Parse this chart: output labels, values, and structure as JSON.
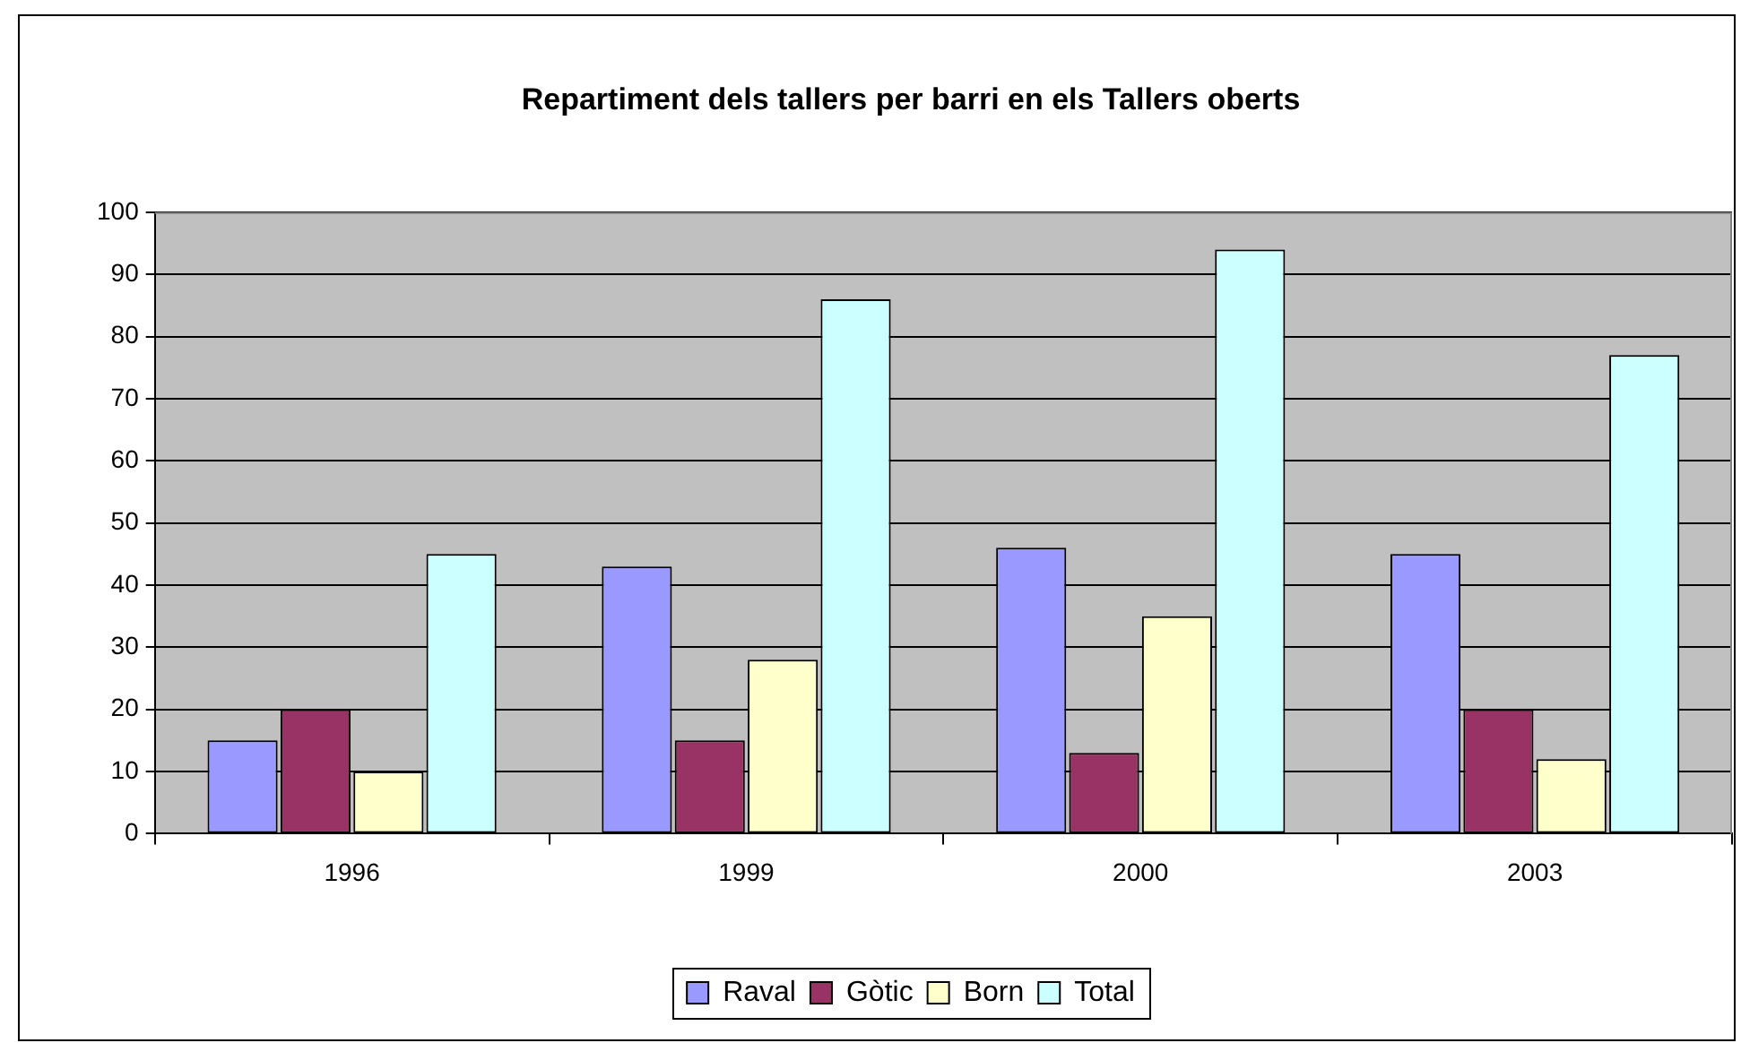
{
  "chart_data": {
    "type": "bar",
    "title": "Repartiment dels tallers per barri en els Tallers oberts",
    "categories": [
      "1996",
      "1999",
      "2000",
      "2003"
    ],
    "series": [
      {
        "name": "Raval",
        "color": "#9999ff",
        "values": [
          15,
          43,
          46,
          45
        ]
      },
      {
        "name": "Gòtic",
        "color": "#993366",
        "values": [
          20,
          15,
          13,
          20
        ]
      },
      {
        "name": "Born",
        "color": "#ffffcc",
        "values": [
          10,
          28,
          35,
          12
        ]
      },
      {
        "name": "Total",
        "color": "#ccffff",
        "values": [
          45,
          86,
          94,
          77
        ]
      }
    ],
    "ylim": [
      0,
      100
    ],
    "yticks": [
      0,
      10,
      20,
      30,
      40,
      50,
      60,
      70,
      80,
      90,
      100
    ],
    "grid": "y",
    "legend": "bottom"
  }
}
